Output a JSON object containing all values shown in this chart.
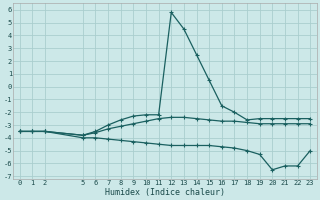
{
  "xlabel": "Humidex (Indice chaleur)",
  "bg_color": "#cce8e8",
  "grid_color": "#aacece",
  "line_color": "#1a6060",
  "xlim": [
    -0.5,
    23.5
  ],
  "ylim": [
    -7.2,
    6.5
  ],
  "xticks": [
    0,
    1,
    2,
    5,
    6,
    7,
    8,
    9,
    10,
    11,
    12,
    13,
    14,
    15,
    16,
    17,
    18,
    19,
    20,
    21,
    22,
    23
  ],
  "yticks": [
    6,
    5,
    4,
    3,
    2,
    1,
    0,
    -1,
    -2,
    -3,
    -4,
    -5,
    -6,
    -7
  ],
  "line1_x": [
    0,
    1,
    2,
    5,
    6,
    7,
    8,
    9,
    10,
    11,
    12,
    13,
    14,
    15,
    16,
    17,
    18,
    19,
    20,
    21,
    22,
    23
  ],
  "line1_y": [
    -3.5,
    -3.5,
    -3.5,
    -3.8,
    -3.5,
    -3.0,
    -2.6,
    -2.3,
    -2.2,
    -2.2,
    5.8,
    4.5,
    2.5,
    0.5,
    -1.5,
    -2.0,
    -2.6,
    -2.5,
    -2.5,
    -2.5,
    -2.5,
    -2.5
  ],
  "line2_x": [
    0,
    1,
    2,
    5,
    6,
    7,
    8,
    9,
    10,
    11,
    12,
    13,
    14,
    15,
    16,
    17,
    18,
    19,
    20,
    21,
    22,
    23
  ],
  "line2_y": [
    -3.5,
    -3.5,
    -3.5,
    -3.8,
    -3.6,
    -3.3,
    -3.1,
    -2.9,
    -2.7,
    -2.5,
    -2.4,
    -2.4,
    -2.5,
    -2.6,
    -2.7,
    -2.7,
    -2.8,
    -2.9,
    -2.9,
    -2.9,
    -2.9,
    -2.9
  ],
  "line3_x": [
    0,
    1,
    2,
    5,
    6,
    7,
    8,
    9,
    10,
    11,
    12,
    13,
    14,
    15,
    16,
    17,
    18,
    19,
    20,
    21,
    22,
    23
  ],
  "line3_y": [
    -3.5,
    -3.5,
    -3.5,
    -4.0,
    -4.0,
    -4.1,
    -4.2,
    -4.3,
    -4.4,
    -4.5,
    -4.6,
    -4.6,
    -4.6,
    -4.6,
    -4.7,
    -4.8,
    -5.0,
    -5.3,
    -6.5,
    -6.2,
    -6.2,
    -5.0
  ],
  "font_family": "monospace",
  "tick_fontsize": 5.0,
  "xlabel_fontsize": 6.0
}
